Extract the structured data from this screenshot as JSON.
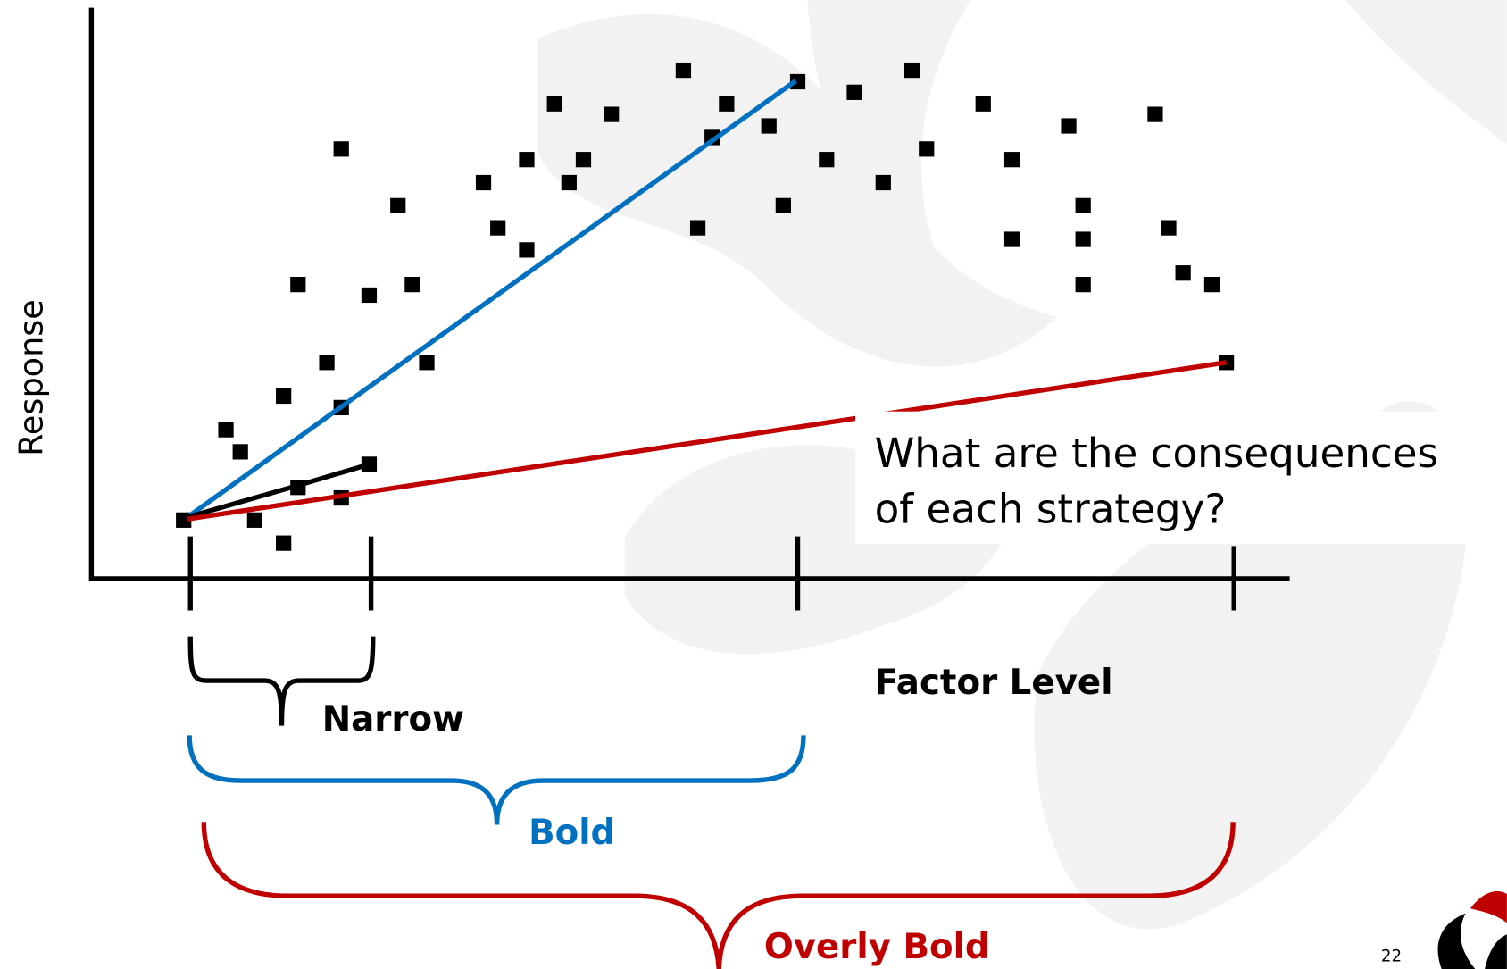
{
  "y_axis_label": "Response",
  "x_axis_label": "Factor Level",
  "question": [
    "What are the consequences",
    "of each strategy?"
  ],
  "braces": [
    {
      "label": "Narrow"
    },
    {
      "label": "Bold"
    },
    {
      "label": "Overly Bold"
    }
  ],
  "page_number": "22"
}
